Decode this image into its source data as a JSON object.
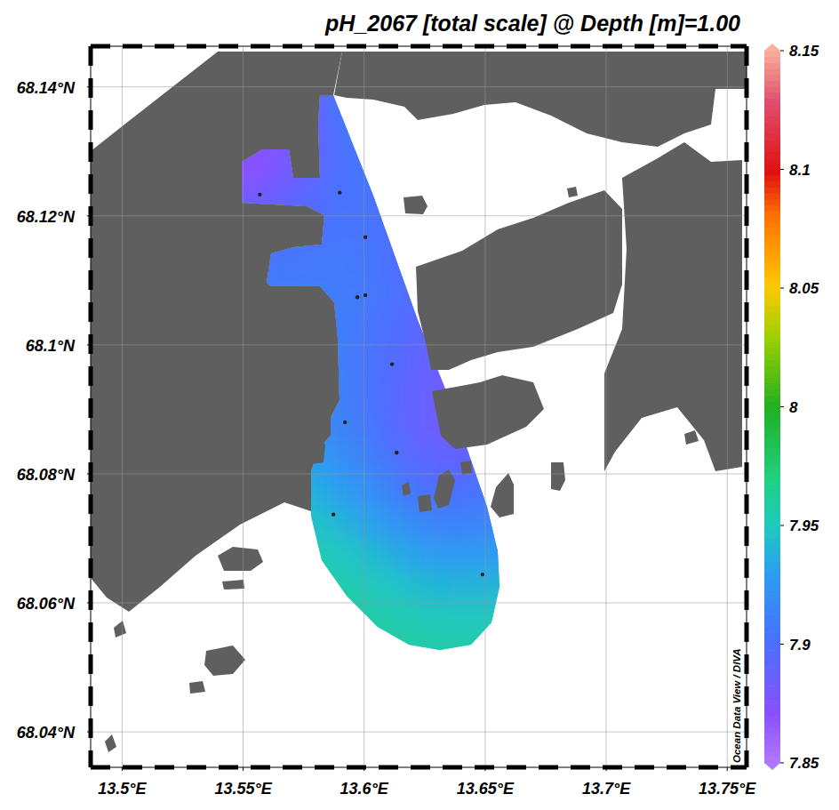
{
  "chart_data": {
    "type": "map_heatmap",
    "title": "pH_2067 [total scale] @ Depth [m]=1.00",
    "credit": "Ocean Data View / DIVA",
    "xlim": [
      13.487,
      13.758
    ],
    "ylim": [
      68.0345,
      68.1463
    ],
    "xticks": [
      {
        "value": 13.5,
        "label": "13.5°E"
      },
      {
        "value": 13.55,
        "label": "13.55°E"
      },
      {
        "value": 13.6,
        "label": "13.6°E"
      },
      {
        "value": 13.65,
        "label": "13.65°E"
      },
      {
        "value": 13.7,
        "label": "13.7°E"
      },
      {
        "value": 13.75,
        "label": "13.75°E"
      }
    ],
    "yticks": [
      {
        "value": 68.04,
        "label": "68.04°N"
      },
      {
        "value": 68.06,
        "label": "68.06°N"
      },
      {
        "value": 68.08,
        "label": "68.08°N"
      },
      {
        "value": 68.1,
        "label": "68.1°N"
      },
      {
        "value": 68.12,
        "label": "68.12°N"
      },
      {
        "value": 68.14,
        "label": "68.14°N"
      }
    ],
    "grid": true,
    "colorbar": {
      "range": [
        7.85,
        8.15
      ],
      "ticks": [
        7.85,
        7.9,
        7.95,
        8,
        8.05,
        8.1,
        8.15
      ]
    },
    "field": {
      "lon": [
        13.55,
        13.56,
        13.57,
        13.58,
        13.59,
        13.6,
        13.61,
        13.62,
        13.63,
        13.64,
        13.65,
        13.66
      ],
      "lat": [
        68.1375,
        68.1325,
        68.1275,
        68.1225,
        68.1175,
        68.1125,
        68.1075,
        68.1025,
        68.0975,
        68.0925,
        68.0875,
        68.0825,
        68.0775,
        68.0725,
        68.0675,
        68.0625,
        68.0575,
        68.0525
      ],
      "values": [
        [
          7.872,
          7.875,
          7.88,
          7.89,
          7.905,
          7.91,
          7.91,
          7.905,
          7.9,
          7.9,
          7.9,
          7.9
        ],
        [
          7.87,
          7.872,
          7.878,
          7.89,
          7.903,
          7.908,
          7.905,
          7.9,
          7.9,
          7.9,
          7.9,
          7.9
        ],
        [
          7.872,
          7.875,
          7.882,
          7.892,
          7.902,
          7.905,
          7.902,
          7.9,
          7.9,
          7.9,
          7.9,
          7.9
        ],
        [
          7.882,
          7.885,
          7.89,
          7.897,
          7.903,
          7.905,
          7.9,
          7.895,
          7.895,
          7.895,
          7.895,
          7.895
        ],
        [
          7.893,
          7.895,
          7.898,
          7.902,
          7.905,
          7.905,
          7.9,
          7.895,
          7.893,
          7.893,
          7.893,
          7.893
        ],
        [
          7.904,
          7.905,
          7.906,
          7.907,
          7.907,
          7.906,
          7.902,
          7.897,
          7.893,
          7.89,
          7.89,
          7.89
        ],
        [
          7.91,
          7.91,
          7.91,
          7.91,
          7.909,
          7.907,
          7.903,
          7.897,
          7.892,
          7.89,
          7.89,
          7.89
        ],
        [
          7.91,
          7.91,
          7.91,
          7.91,
          7.909,
          7.906,
          7.9,
          7.895,
          7.89,
          7.888,
          7.888,
          7.888
        ],
        [
          7.912,
          7.912,
          7.912,
          7.912,
          7.91,
          7.905,
          7.898,
          7.892,
          7.887,
          7.885,
          7.885,
          7.885
        ],
        [
          7.915,
          7.915,
          7.915,
          7.914,
          7.911,
          7.905,
          7.897,
          7.889,
          7.884,
          7.882,
          7.883,
          7.885
        ],
        [
          7.92,
          7.92,
          7.92,
          7.918,
          7.914,
          7.907,
          7.898,
          7.889,
          7.884,
          7.883,
          7.885,
          7.888
        ],
        [
          7.93,
          7.93,
          7.93,
          7.927,
          7.921,
          7.913,
          7.904,
          7.895,
          7.89,
          7.89,
          7.893,
          7.897
        ],
        [
          7.94,
          7.94,
          7.94,
          7.937,
          7.93,
          7.922,
          7.913,
          7.905,
          7.9,
          7.9,
          7.903,
          7.907
        ],
        [
          7.95,
          7.95,
          7.948,
          7.946,
          7.94,
          7.933,
          7.925,
          7.918,
          7.913,
          7.912,
          7.914,
          7.917
        ],
        [
          7.955,
          7.955,
          7.955,
          7.953,
          7.949,
          7.944,
          7.938,
          7.932,
          7.928,
          7.927,
          7.928,
          7.93
        ],
        [
          7.96,
          7.96,
          7.96,
          7.958,
          7.956,
          7.952,
          7.948,
          7.944,
          7.941,
          7.94,
          7.94,
          7.941
        ],
        [
          7.962,
          7.962,
          7.962,
          7.961,
          7.96,
          7.958,
          7.955,
          7.953,
          7.951,
          7.95,
          7.95,
          7.95
        ],
        [
          7.963,
          7.963,
          7.963,
          7.963,
          7.962,
          7.961,
          7.96,
          7.958,
          7.957,
          7.956,
          7.956,
          7.956
        ]
      ]
    },
    "stations": {
      "x": [
        13.5569,
        13.5899,
        13.6005,
        13.5972,
        13.6005,
        13.6115,
        13.5921,
        13.6134,
        13.5873,
        13.6489
      ],
      "y": [
        68.1233,
        68.1236,
        68.1167,
        68.1074,
        68.1077,
        68.097,
        68.088,
        68.0833,
        68.0737,
        68.0644
      ]
    }
  }
}
